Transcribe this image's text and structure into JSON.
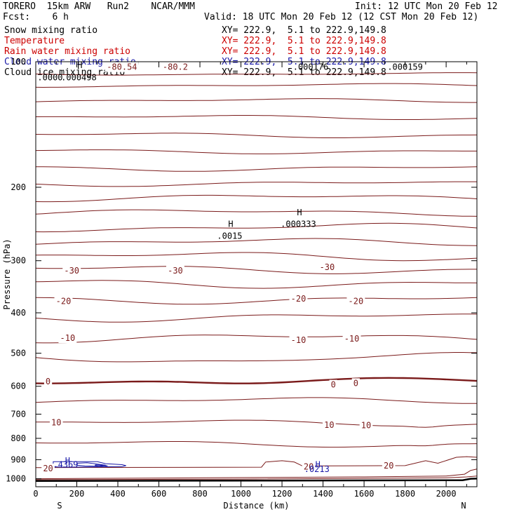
{
  "header": {
    "model": "TORERO  15km ARW   Run2    NCAR/MMM",
    "init": "Init: 12 UTC Mon 20 Feb 12",
    "fcst": "Fcst:    6 h",
    "valid": "Valid: 18 UTC Mon 20 Feb 12 (12 CST Mon 20 Feb 12)"
  },
  "fields": [
    {
      "name": "Snow mixing ratio",
      "xsec": "XY= 222.9,  5.1 to 222.9,149.8",
      "color": "#000000"
    },
    {
      "name": "Temperature",
      "xsec": "XY= 222.9,  5.1 to 222.9,149.8",
      "color": "#cc0000"
    },
    {
      "name": "Rain water mixing ratio",
      "xsec": "XY= 222.9,  5.1 to 222.9,149.8",
      "color": "#cc0000"
    },
    {
      "name": "Cloud water mixing ratio",
      "xsec": "XY= 222.9,  5.1 to 222.9,149.8",
      "color": "#1a1aa8"
    },
    {
      "name": "Cloud ice mixing ratio",
      "xsec": "XY= 222.9,  5.1 to 222.9,149.8",
      "color": "#000000"
    }
  ],
  "chart_data": {
    "type": "line",
    "xlabel": "Distance (km)",
    "ylabel": "Pressure (hPa)",
    "xlim": [
      0,
      2150
    ],
    "ylim": [
      1045,
      100
    ],
    "y_scale": "log",
    "x_ticks": [
      0,
      200,
      400,
      600,
      800,
      1000,
      1200,
      1400,
      1600,
      1800,
      2000
    ],
    "y_ticks": [
      100,
      200,
      300,
      400,
      500,
      600,
      700,
      800,
      900,
      1000
    ],
    "x_end_labels": {
      "left": "S",
      "right": "N"
    },
    "grid": false,
    "colors": {
      "temperature": "#7a1a1a",
      "cloud_water": "#1a1aa8",
      "terrain": "#000000"
    },
    "temperature_contour_interval": 5,
    "temperature_labels": [
      {
        "text": "-80.54",
        "x": 420,
        "p": 103
      },
      {
        "text": "-80.2",
        "x": 680,
        "p": 103
      },
      {
        "text": "-30",
        "x": 175,
        "p": 317
      },
      {
        "text": "-30",
        "x": 680,
        "p": 317
      },
      {
        "text": "-30",
        "x": 1420,
        "p": 311
      },
      {
        "text": "-20",
        "x": 135,
        "p": 375
      },
      {
        "text": "-20",
        "x": 1280,
        "p": 370
      },
      {
        "text": "-20",
        "x": 1560,
        "p": 375
      },
      {
        "text": "-10",
        "x": 155,
        "p": 460
      },
      {
        "text": "-10",
        "x": 1280,
        "p": 465
      },
      {
        "text": "-10",
        "x": 1540,
        "p": 462
      },
      {
        "text": "0",
        "x": 60,
        "p": 585
      },
      {
        "text": "0",
        "x": 1450,
        "p": 595
      },
      {
        "text": "0",
        "x": 1560,
        "p": 590
      },
      {
        "text": "10",
        "x": 100,
        "p": 733
      },
      {
        "text": "10",
        "x": 1430,
        "p": 743
      },
      {
        "text": "10",
        "x": 1610,
        "p": 745
      },
      {
        "text": "20",
        "x": 60,
        "p": 945
      },
      {
        "text": "20",
        "x": 1330,
        "p": 936
      },
      {
        "text": "20",
        "x": 1720,
        "p": 930
      }
    ],
    "max_labels": [
      {
        "text": "H",
        "x": 215,
        "p": 102,
        "color": "#000000"
      },
      {
        "text": ".000498",
        "x": 210,
        "p": 109,
        "color": "#000000"
      },
      {
        "text": ".0000",
        "x": 70,
        "p": 109,
        "color": "#000000"
      },
      {
        "text": ".000176",
        "x": 1340,
        "p": 103,
        "color": "#000000"
      },
      {
        "text": ".000159",
        "x": 1800,
        "p": 103,
        "color": "#000000"
      },
      {
        "text": "H",
        "x": 950,
        "p": 245,
        "color": "#000000"
      },
      {
        "text": ".0015",
        "x": 945,
        "p": 262,
        "color": "#000000"
      },
      {
        "text": "H",
        "x": 1285,
        "p": 230,
        "color": "#000000"
      },
      {
        "text": ".000333",
        "x": 1280,
        "p": 245,
        "color": "#000000"
      },
      {
        "text": "H",
        "x": 155,
        "p": 905,
        "color": "#1a1aa8"
      },
      {
        "text": ".4369",
        "x": 145,
        "p": 925,
        "color": "#1a1aa8"
      },
      {
        "text": "H",
        "x": 1375,
        "p": 925,
        "color": "#1a1aa8"
      },
      {
        "text": ".0213",
        "x": 1370,
        "p": 948,
        "color": "#1a1aa8"
      }
    ]
  }
}
